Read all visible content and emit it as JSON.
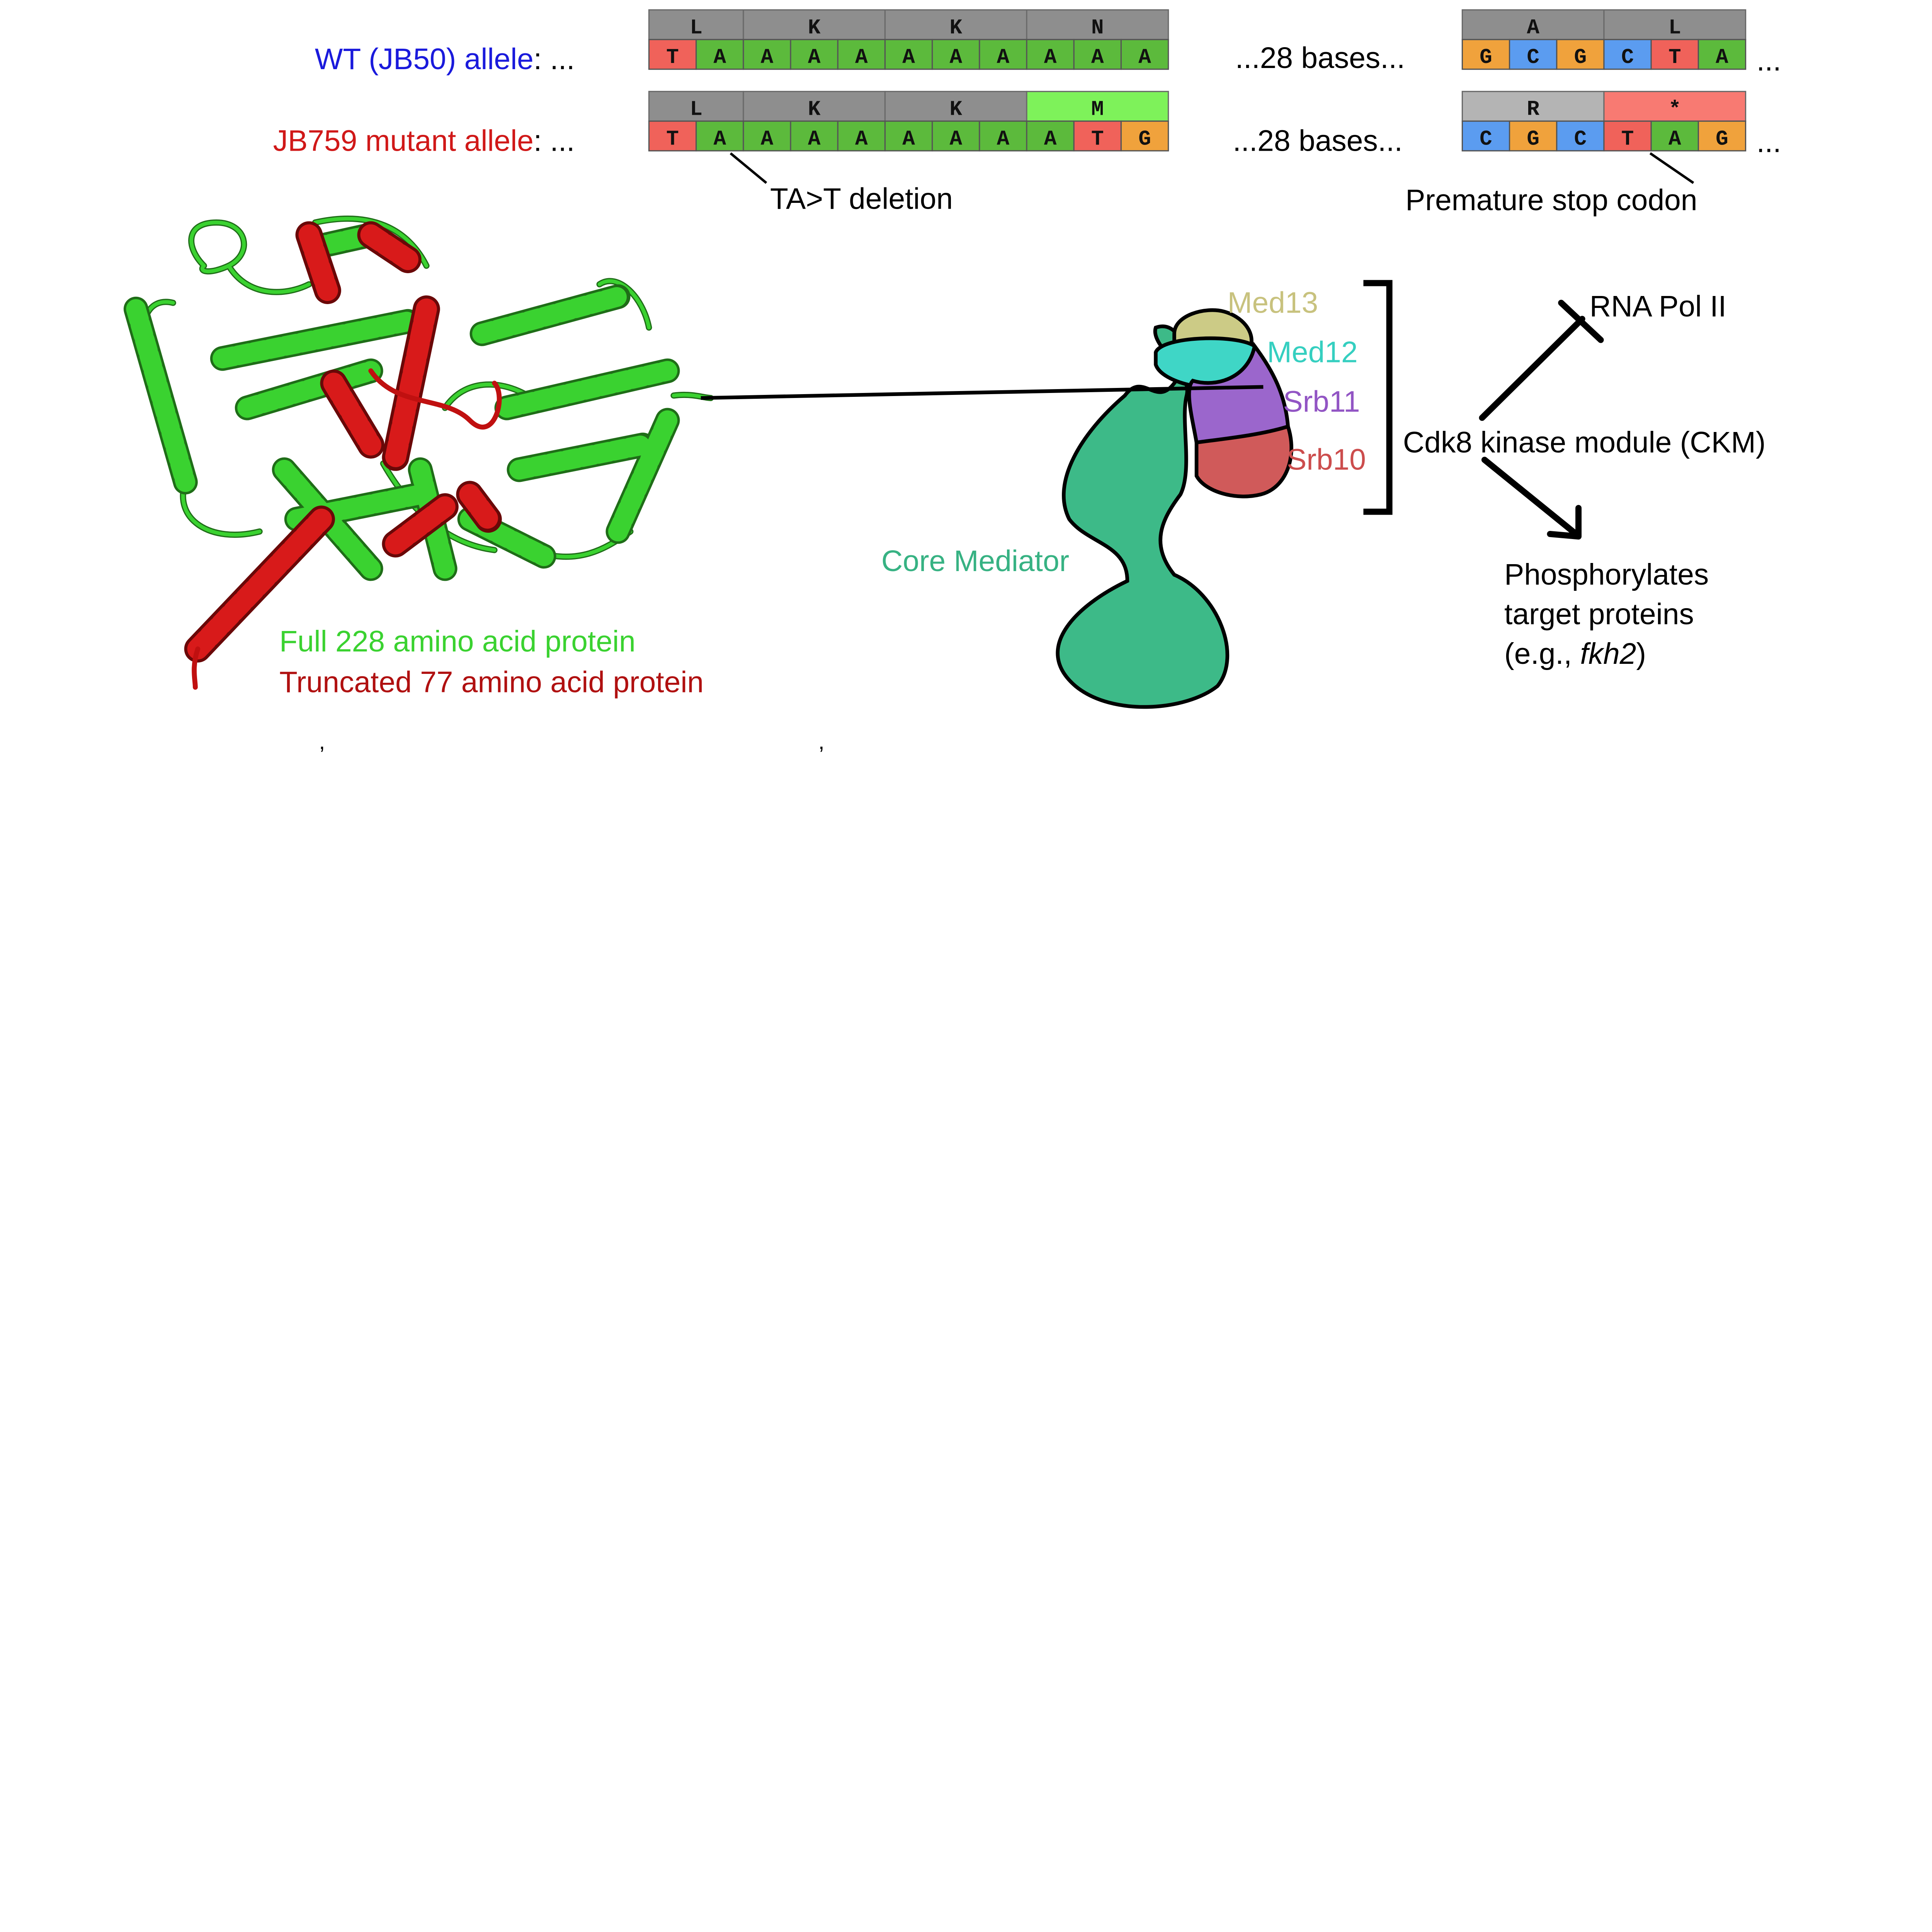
{
  "sequences": {
    "wt": {
      "label_name": "WT (JB50) allele",
      "label_suffix": ": ...",
      "codons_left": [
        "L",
        "K",
        "K",
        "N"
      ],
      "bases_left": [
        "T",
        "A",
        "A",
        "A",
        "A",
        "A",
        "A",
        "A",
        "A",
        "A",
        "A"
      ],
      "gap_text": "...28 bases...",
      "codons_right": [
        "A",
        "L"
      ],
      "bases_right": [
        "G",
        "C",
        "G",
        "C",
        "T",
        "A"
      ],
      "tail": "..."
    },
    "mutant": {
      "label_name": "JB759 mutant allele",
      "label_suffix": ": ...",
      "codons_left": [
        "L",
        "K",
        "K",
        "M"
      ],
      "bases_left": [
        "T",
        "A",
        "A",
        "A",
        "A",
        "A",
        "A",
        "A",
        "A",
        "T",
        "G"
      ],
      "gap_text": "...28 bases...",
      "codons_right": [
        "R",
        "*"
      ],
      "bases_right": [
        "C",
        "G",
        "C",
        "T",
        "A",
        "G"
      ],
      "tail": "..."
    },
    "annotations": {
      "deletion": "TA>T deletion",
      "stop": "Premature stop codon"
    }
  },
  "protein": {
    "full_label": "Full 228 amino acid protein",
    "truncated_label": "Truncated 77 amino acid protein"
  },
  "mediator": {
    "core": "Core Mediator",
    "subunits": [
      "Med13",
      "Med12",
      "Srb11",
      "Srb10"
    ],
    "module": "Cdk8 kinase module (CKM)",
    "inhibits": "RNA Pol II",
    "activates_lines": [
      "Phosphorylates",
      "target proteins"
    ],
    "example_prefix": "(e.g., ",
    "example_gene": "fkh2",
    "example_suffix": ")"
  },
  "stray_marks": [
    ",",
    ","
  ],
  "colors": {
    "A": "#5cba3c",
    "T": "#f0625a",
    "G": "#f0a23c",
    "C": "#5b9cf0",
    "codon_gray": "#8e8e8e",
    "codon_light_gray": "#b4b4b4",
    "codon_green": "#7ef25a",
    "codon_red": "#f87a72",
    "wt_text": "#1a1adc",
    "mut_text": "#d01818",
    "full_protein": "#3ad230",
    "truncated_protein": "#b01010",
    "core": "#3dba88",
    "med13": "#cccb86",
    "med12": "#3fd6c6",
    "srb11": "#9b66cc",
    "srb10": "#d05a5a",
    "med13_text": "#c8c27e",
    "med12_text": "#35cfc0",
    "srb11_text": "#9255c4",
    "srb10_text": "#cc4d4d",
    "core_text": "#37b283"
  }
}
